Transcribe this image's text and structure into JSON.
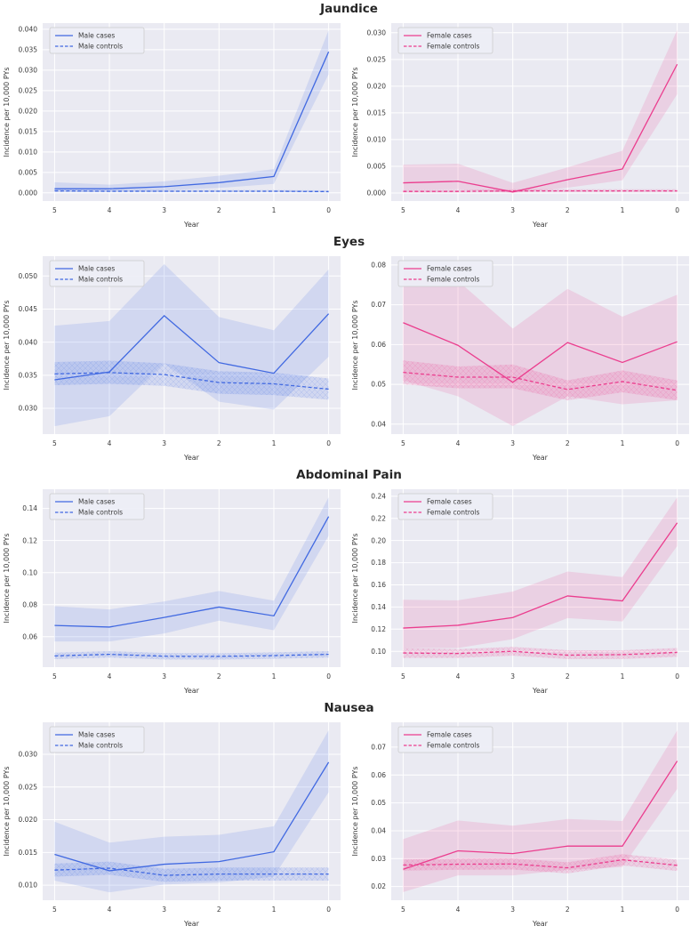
{
  "rows": [
    {
      "title": "Jaundice"
    },
    {
      "title": "Eyes"
    },
    {
      "title": "Abdominal Pain"
    },
    {
      "title": "Nausea"
    }
  ],
  "chart_data": [
    {
      "type": "line",
      "group": "Jaundice",
      "sex": "male",
      "xlabel": "Year",
      "ylabel": "Incidence per 10,000 PYs",
      "color": "#4169e1",
      "x": [
        5,
        4,
        3,
        2,
        1,
        0
      ],
      "xtick_labels": [
        "5",
        "4",
        "3",
        "2",
        "1",
        "0"
      ],
      "ylim": [
        -0.002,
        0.0415
      ],
      "ytick_values": [
        0.0,
        0.005,
        0.01,
        0.015,
        0.02,
        0.025,
        0.03,
        0.035,
        0.04
      ],
      "ytick_labels": [
        "0.000",
        "0.005",
        "0.010",
        "0.015",
        "0.020",
        "0.025",
        "0.030",
        "0.035",
        "0.040"
      ],
      "series": [
        {
          "name": "Male cases",
          "style": "solid",
          "hatch": false,
          "values": [
            0.001,
            0.001,
            0.0015,
            0.0025,
            0.004,
            0.0345
          ],
          "lower": [
            0.0005,
            0.0004,
            0.0006,
            0.0012,
            0.0022,
            0.029
          ],
          "upper": [
            0.0026,
            0.002,
            0.0028,
            0.0042,
            0.0058,
            0.0398
          ]
        },
        {
          "name": "Male controls",
          "style": "dashed",
          "hatch": true,
          "values": [
            0.0005,
            0.0004,
            0.0004,
            0.0004,
            0.0004,
            0.0003
          ],
          "lower": [
            0.0002,
            0.0002,
            0.0002,
            0.0002,
            0.0002,
            0.0001
          ],
          "upper": [
            0.0008,
            0.0007,
            0.0007,
            0.0007,
            0.0007,
            0.0006
          ]
        }
      ]
    },
    {
      "type": "line",
      "group": "Jaundice",
      "sex": "female",
      "xlabel": "Year",
      "ylabel": "Incidence per 10,000 PYs",
      "color": "#eb3d8e",
      "x": [
        5,
        4,
        3,
        2,
        1,
        0
      ],
      "xtick_labels": [
        "5",
        "4",
        "3",
        "2",
        "1",
        "0"
      ],
      "ylim": [
        -0.0015,
        0.0318
      ],
      "ytick_values": [
        0.0,
        0.005,
        0.01,
        0.015,
        0.02,
        0.025,
        0.03
      ],
      "ytick_labels": [
        "0.000",
        "0.005",
        "0.010",
        "0.015",
        "0.020",
        "0.025",
        "0.030"
      ],
      "series": [
        {
          "name": "Female cases",
          "style": "solid",
          "hatch": false,
          "values": [
            0.0019,
            0.0022,
            0.0002,
            0.0025,
            0.0045,
            0.0241
          ],
          "lower": [
            0.0006,
            0.0007,
            0.0,
            0.001,
            0.0024,
            0.0185
          ],
          "upper": [
            0.0053,
            0.0055,
            0.0019,
            0.0048,
            0.0079,
            0.0305
          ]
        },
        {
          "name": "Female controls",
          "style": "dashed",
          "hatch": true,
          "values": [
            0.0003,
            0.0003,
            0.0004,
            0.0004,
            0.0004,
            0.0004
          ],
          "lower": [
            0.0001,
            0.0001,
            0.0002,
            0.0002,
            0.0002,
            0.0002
          ],
          "upper": [
            0.0006,
            0.0006,
            0.0007,
            0.0007,
            0.0007,
            0.0007
          ]
        }
      ]
    },
    {
      "type": "line",
      "group": "Eyes",
      "sex": "male",
      "xlabel": "Year",
      "ylabel": "Incidence per 10,000 PYs",
      "color": "#4169e1",
      "x": [
        5,
        4,
        3,
        2,
        1,
        0
      ],
      "xtick_labels": [
        "5",
        "4",
        "3",
        "2",
        "1",
        "0"
      ],
      "ylim": [
        0.0261,
        0.053
      ],
      "ytick_values": [
        0.03,
        0.035,
        0.04,
        0.045,
        0.05
      ],
      "ytick_labels": [
        "0.030",
        "0.035",
        "0.040",
        "0.045",
        "0.050"
      ],
      "series": [
        {
          "name": "Male cases",
          "style": "solid",
          "hatch": false,
          "values": [
            0.0343,
            0.0355,
            0.044,
            0.0369,
            0.0353,
            0.0443
          ],
          "lower": [
            0.0273,
            0.0288,
            0.0368,
            0.031,
            0.0298,
            0.0378
          ],
          "upper": [
            0.0425,
            0.0432,
            0.0518,
            0.0438,
            0.0418,
            0.051
          ]
        },
        {
          "name": "Male controls",
          "style": "dashed",
          "hatch": true,
          "values": [
            0.0352,
            0.0354,
            0.0351,
            0.0339,
            0.0337,
            0.0329
          ],
          "lower": [
            0.0335,
            0.0337,
            0.0334,
            0.0322,
            0.032,
            0.0313
          ],
          "upper": [
            0.037,
            0.0372,
            0.0368,
            0.0356,
            0.0354,
            0.0345
          ]
        }
      ]
    },
    {
      "type": "line",
      "group": "Eyes",
      "sex": "female",
      "xlabel": "Year",
      "ylabel": "Incidence per 10,000 PYs",
      "color": "#eb3d8e",
      "x": [
        5,
        4,
        3,
        2,
        1,
        0
      ],
      "xtick_labels": [
        "5",
        "4",
        "3",
        "2",
        "1",
        "0"
      ],
      "ylim": [
        0.0375,
        0.0822
      ],
      "ytick_values": [
        0.04,
        0.05,
        0.06,
        0.07,
        0.08
      ],
      "ytick_labels": [
        "0.04",
        "0.05",
        "0.06",
        "0.07",
        "0.08"
      ],
      "series": [
        {
          "name": "Female cases",
          "style": "solid",
          "hatch": false,
          "values": [
            0.0655,
            0.0598,
            0.0505,
            0.0605,
            0.0555,
            0.0607
          ],
          "lower": [
            0.051,
            0.047,
            0.0395,
            0.047,
            0.045,
            0.046
          ],
          "upper": [
            0.08,
            0.076,
            0.064,
            0.074,
            0.067,
            0.0725
          ]
        },
        {
          "name": "Female controls",
          "style": "dashed",
          "hatch": true,
          "values": [
            0.053,
            0.0518,
            0.0518,
            0.0487,
            0.0507,
            0.0485
          ],
          "lower": [
            0.05,
            0.049,
            0.049,
            0.046,
            0.048,
            0.046
          ],
          "upper": [
            0.056,
            0.0545,
            0.055,
            0.051,
            0.0535,
            0.051
          ]
        }
      ]
    },
    {
      "type": "line",
      "group": "Abdominal Pain",
      "sex": "male",
      "xlabel": "Year",
      "ylabel": "Incidence per 10,000 PYs",
      "color": "#4169e1",
      "x": [
        5,
        4,
        3,
        2,
        1,
        0
      ],
      "xtick_labels": [
        "5",
        "4",
        "3",
        "2",
        "1",
        "0"
      ],
      "ylim": [
        0.041,
        0.152
      ],
      "ytick_values": [
        0.06,
        0.08,
        0.1,
        0.12,
        0.14
      ],
      "ytick_labels": [
        "0.06",
        "0.08",
        "0.10",
        "0.12",
        "0.14"
      ],
      "series": [
        {
          "name": "Male cases",
          "style": "solid",
          "hatch": false,
          "values": [
            0.067,
            0.066,
            0.072,
            0.0785,
            0.073,
            0.135
          ],
          "lower": [
            0.057,
            0.057,
            0.062,
            0.07,
            0.064,
            0.123
          ],
          "upper": [
            0.079,
            0.077,
            0.082,
            0.0885,
            0.0825,
            0.147
          ]
        },
        {
          "name": "Male controls",
          "style": "dashed",
          "hatch": true,
          "values": [
            0.048,
            0.049,
            0.0478,
            0.0477,
            0.0482,
            0.049
          ],
          "lower": [
            0.046,
            0.047,
            0.0458,
            0.0457,
            0.0462,
            0.047
          ],
          "upper": [
            0.05,
            0.051,
            0.0498,
            0.0497,
            0.0502,
            0.051
          ]
        }
      ]
    },
    {
      "type": "line",
      "group": "Abdominal Pain",
      "sex": "female",
      "xlabel": "Year",
      "ylabel": "Incidence per 10,000 PYs",
      "color": "#eb3d8e",
      "x": [
        5,
        4,
        3,
        2,
        1,
        0
      ],
      "xtick_labels": [
        "5",
        "4",
        "3",
        "2",
        "1",
        "0"
      ],
      "ylim": [
        0.0857,
        0.2463
      ],
      "ytick_values": [
        0.1,
        0.12,
        0.14,
        0.16,
        0.18,
        0.2,
        0.22,
        0.24
      ],
      "ytick_labels": [
        "0.10",
        "0.12",
        "0.14",
        "0.16",
        "0.18",
        "0.20",
        "0.22",
        "0.24"
      ],
      "series": [
        {
          "name": "Female cases",
          "style": "solid",
          "hatch": false,
          "values": [
            0.121,
            0.1235,
            0.1305,
            0.15,
            0.1455,
            0.216
          ],
          "lower": [
            0.103,
            0.103,
            0.111,
            0.13,
            0.127,
            0.195
          ],
          "upper": [
            0.1465,
            0.146,
            0.154,
            0.172,
            0.167,
            0.239
          ]
        },
        {
          "name": "Female controls",
          "style": "dashed",
          "hatch": true,
          "values": [
            0.0985,
            0.098,
            0.1,
            0.0965,
            0.097,
            0.099
          ],
          "lower": [
            0.094,
            0.094,
            0.096,
            0.093,
            0.093,
            0.095
          ],
          "upper": [
            0.103,
            0.102,
            0.104,
            0.101,
            0.101,
            0.103
          ]
        }
      ]
    },
    {
      "type": "line",
      "group": "Nausea",
      "sex": "male",
      "xlabel": "Year",
      "ylabel": "Incidence per 10,000 PYs",
      "color": "#4169e1",
      "x": [
        5,
        4,
        3,
        2,
        1,
        0
      ],
      "xtick_labels": [
        "5",
        "4",
        "3",
        "2",
        "1",
        "0"
      ],
      "ylim": [
        0.0077,
        0.0349
      ],
      "ytick_values": [
        0.01,
        0.015,
        0.02,
        0.025,
        0.03
      ],
      "ytick_labels": [
        "0.010",
        "0.015",
        "0.020",
        "0.025",
        "0.030"
      ],
      "series": [
        {
          "name": "Male cases",
          "style": "solid",
          "hatch": false,
          "values": [
            0.0147,
            0.0122,
            0.0132,
            0.0136,
            0.0151,
            0.0288
          ],
          "lower": [
            0.0107,
            0.0089,
            0.0101,
            0.0104,
            0.0113,
            0.0242
          ],
          "upper": [
            0.0197,
            0.0165,
            0.0174,
            0.0177,
            0.019,
            0.0337
          ]
        },
        {
          "name": "Male controls",
          "style": "dashed",
          "hatch": true,
          "values": [
            0.0123,
            0.0126,
            0.0115,
            0.0117,
            0.0117,
            0.0117
          ],
          "lower": [
            0.0113,
            0.0116,
            0.0105,
            0.0107,
            0.0107,
            0.0107
          ],
          "upper": [
            0.0133,
            0.0136,
            0.0125,
            0.0127,
            0.0127,
            0.0127
          ]
        }
      ]
    },
    {
      "type": "line",
      "group": "Nausea",
      "sex": "female",
      "xlabel": "Year",
      "ylabel": "Incidence per 10,000 PYs",
      "color": "#eb3d8e",
      "x": [
        5,
        4,
        3,
        2,
        1,
        0
      ],
      "xtick_labels": [
        "5",
        "4",
        "3",
        "2",
        "1",
        "0"
      ],
      "ylim": [
        0.0151,
        0.0789
      ],
      "ytick_values": [
        0.02,
        0.03,
        0.04,
        0.05,
        0.06,
        0.07
      ],
      "ytick_labels": [
        "0.02",
        "0.03",
        "0.04",
        "0.05",
        "0.06",
        "0.07"
      ],
      "series": [
        {
          "name": "Female cases",
          "style": "solid",
          "hatch": false,
          "values": [
            0.0262,
            0.0328,
            0.0318,
            0.0345,
            0.0345,
            0.065
          ],
          "lower": [
            0.018,
            0.024,
            0.024,
            0.026,
            0.027,
            0.055
          ],
          "upper": [
            0.037,
            0.0437,
            0.0418,
            0.0442,
            0.0435,
            0.076
          ]
        },
        {
          "name": "Female controls",
          "style": "dashed",
          "hatch": true,
          "values": [
            0.0277,
            0.028,
            0.0281,
            0.0267,
            0.0296,
            0.0276
          ],
          "lower": [
            0.0257,
            0.026,
            0.0261,
            0.0247,
            0.0276,
            0.0256
          ],
          "upper": [
            0.0297,
            0.03,
            0.0301,
            0.0287,
            0.0316,
            0.0296
          ]
        }
      ]
    }
  ],
  "style": {
    "plot_bg": "#eaeaf2",
    "grid_color": "#ffffff",
    "legend_bg": "#edeef6",
    "legend_border": "#cccccc",
    "band_opacity": 0.15,
    "hatch_opacity": 0.28
  }
}
